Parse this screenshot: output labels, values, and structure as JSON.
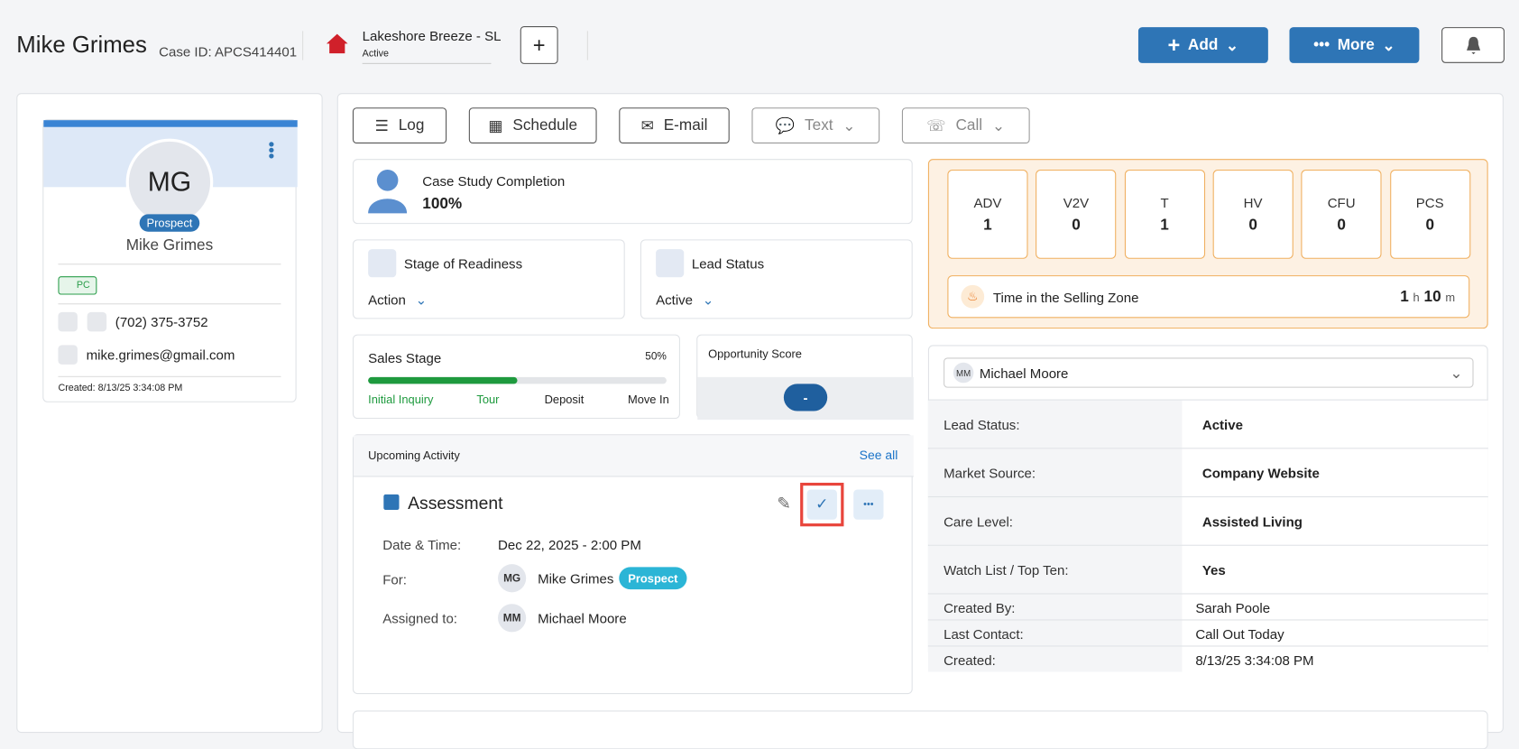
{
  "header": {
    "name": "Mike Grimes",
    "case_id": "Case ID: APCS414401",
    "community": "Lakeshore Breeze - SL",
    "community_status": "Active",
    "add": "Add",
    "more": "More"
  },
  "profile": {
    "initials": "MG",
    "badge": "Prospect",
    "name": "Mike Grimes",
    "tag": "PC",
    "phone": "(702) 375-3752",
    "email": "mike.grimes@gmail.com",
    "created": "Created: 8/13/25 3:34:08 PM"
  },
  "actions": [
    "Log",
    "Schedule",
    "E-mail",
    "Text",
    "Call"
  ],
  "case_study": {
    "label": "Case Study Completion",
    "value": "100%"
  },
  "stage_of_readiness": {
    "label": "Stage of Readiness",
    "value": "Action"
  },
  "lead_status": {
    "label": "Lead Status",
    "value": "Active"
  },
  "sales_stage": {
    "title": "Sales Stage",
    "percent": "50%",
    "steps": [
      "Initial Inquiry",
      "Tour",
      "Deposit",
      "Move In"
    ]
  },
  "opportunity": {
    "title": "Opportunity Score",
    "value": "-"
  },
  "upcoming": {
    "title": "Upcoming Activity",
    "see_all": "See all",
    "activity": "Assessment",
    "date_label": "Date & Time:",
    "date": "Dec 22, 2025 - 2:00 PM",
    "for_label": "For:",
    "for_initials": "MG",
    "for_name": "Mike Grimes",
    "for_badge": "Prospect",
    "assigned_label": "Assigned to:",
    "assigned_initials": "MM",
    "assigned_name": "Michael Moore"
  },
  "metrics": [
    {
      "label": "ADV",
      "value": "1"
    },
    {
      "label": "V2V",
      "value": "0"
    },
    {
      "label": "T",
      "value": "1"
    },
    {
      "label": "HV",
      "value": "0"
    },
    {
      "label": "CFU",
      "value": "0"
    },
    {
      "label": "PCS",
      "value": "0"
    }
  ],
  "selling_zone": {
    "label": "Time in the Selling Zone",
    "hours": "1",
    "h": "h",
    "minutes": "10",
    "m": "m"
  },
  "assignee": {
    "initials": "MM",
    "name": "Michael Moore"
  },
  "details": [
    {
      "label": "Lead Status:",
      "value": "Active"
    },
    {
      "label": "Market Source:",
      "value": "Company Website"
    },
    {
      "label": "Care Level:",
      "value": "Assisted Living"
    },
    {
      "label": "Watch List / Top Ten:",
      "value": "Yes"
    },
    {
      "label": "Created By:",
      "value": "Sarah Poole"
    },
    {
      "label": "Last Contact:",
      "value": "Call Out Today"
    },
    {
      "label": "Created:",
      "value": "8/13/25 3:34:08 PM"
    }
  ]
}
